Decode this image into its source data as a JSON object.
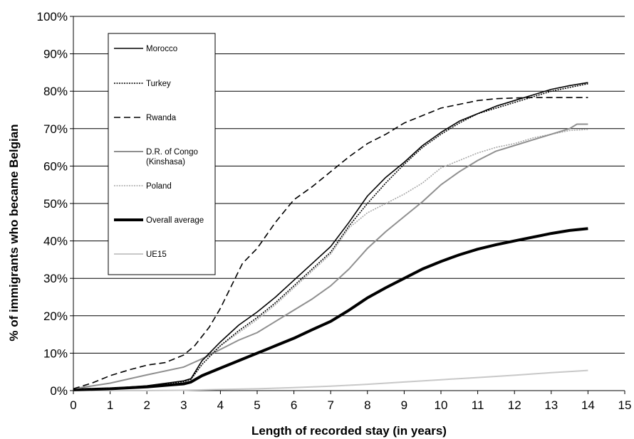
{
  "chart_data": {
    "type": "line",
    "xlabel": "Length of recorded stay (in years)",
    "ylabel": "% of immigrants who became Belgian",
    "xlim": [
      0,
      15
    ],
    "ylim": [
      0,
      100
    ],
    "x_ticks": [
      "0",
      "1",
      "2",
      "3",
      "4",
      "5",
      "6",
      "7",
      "8",
      "9",
      "10",
      "11",
      "12",
      "13",
      "14",
      "15"
    ],
    "y_ticks": [
      "0%",
      "10%",
      "20%",
      "30%",
      "40%",
      "50%",
      "60%",
      "70%",
      "80%",
      "90%",
      "100%"
    ],
    "grid": "horizontal",
    "legend_position": "top-left",
    "series": [
      {
        "name": "Morocco",
        "color": "#000000",
        "style": "solid-thin",
        "points": [
          [
            0,
            0.3
          ],
          [
            1,
            0.6
          ],
          [
            2,
            1.3
          ],
          [
            3,
            2.6
          ],
          [
            3.2,
            3.2
          ],
          [
            3.5,
            8
          ],
          [
            4,
            13
          ],
          [
            4.5,
            17.5
          ],
          [
            5,
            21
          ],
          [
            5.5,
            25
          ],
          [
            6,
            29.5
          ],
          [
            6.5,
            34
          ],
          [
            7,
            38.5
          ],
          [
            7.5,
            45
          ],
          [
            8,
            52
          ],
          [
            8.5,
            57
          ],
          [
            9,
            61
          ],
          [
            9.5,
            65.5
          ],
          [
            10,
            69
          ],
          [
            10.5,
            72
          ],
          [
            11,
            74
          ],
          [
            11.5,
            76
          ],
          [
            12,
            77.5
          ],
          [
            12.5,
            79
          ],
          [
            13,
            80.5
          ],
          [
            13.5,
            81.5
          ],
          [
            14,
            82.3
          ]
        ]
      },
      {
        "name": "Turkey",
        "color": "#000000",
        "style": "dotted",
        "points": [
          [
            0,
            0.3
          ],
          [
            1,
            0.6
          ],
          [
            2,
            1.2
          ],
          [
            3,
            2.4
          ],
          [
            3.2,
            3
          ],
          [
            3.5,
            7
          ],
          [
            4,
            12
          ],
          [
            4.5,
            16
          ],
          [
            5,
            19.5
          ],
          [
            5.5,
            23.5
          ],
          [
            6,
            28
          ],
          [
            6.5,
            32.5
          ],
          [
            7,
            37
          ],
          [
            7.5,
            44
          ],
          [
            8,
            50
          ],
          [
            8.5,
            55.5
          ],
          [
            9,
            60.5
          ],
          [
            9.5,
            65
          ],
          [
            10,
            68.5
          ],
          [
            10.5,
            71.5
          ],
          [
            11,
            74
          ],
          [
            11.5,
            75.5
          ],
          [
            12,
            77
          ],
          [
            12.5,
            78.5
          ],
          [
            13,
            80
          ],
          [
            13.5,
            81
          ],
          [
            14,
            82
          ]
        ]
      },
      {
        "name": "Rwanda",
        "color": "#000000",
        "style": "dashed",
        "points": [
          [
            0,
            0.5
          ],
          [
            0.5,
            2
          ],
          [
            1,
            4
          ],
          [
            1.5,
            5.5
          ],
          [
            2,
            6.8
          ],
          [
            2.5,
            7.5
          ],
          [
            3,
            9.5
          ],
          [
            3.3,
            12
          ],
          [
            3.7,
            17
          ],
          [
            4,
            22
          ],
          [
            4.3,
            28
          ],
          [
            4.6,
            34
          ],
          [
            5,
            38
          ],
          [
            5.5,
            45
          ],
          [
            6,
            51
          ],
          [
            6.5,
            54.5
          ],
          [
            7,
            58.5
          ],
          [
            7.5,
            62.5
          ],
          [
            8,
            66
          ],
          [
            8.5,
            68.5
          ],
          [
            9,
            71.5
          ],
          [
            9.5,
            73.5
          ],
          [
            10,
            75.5
          ],
          [
            10.5,
            76.5
          ],
          [
            11,
            77.5
          ],
          [
            11.5,
            78
          ],
          [
            12,
            78.2
          ],
          [
            12.5,
            78.3
          ],
          [
            13,
            78.3
          ],
          [
            14,
            78.3
          ]
        ]
      },
      {
        "name": "D.R. of Congo (Kinshasa)",
        "color": "#8f8f8f",
        "style": "solid",
        "points": [
          [
            0,
            0.5
          ],
          [
            1,
            2
          ],
          [
            2,
            4.2
          ],
          [
            3,
            6.3
          ],
          [
            3.5,
            8.5
          ],
          [
            4,
            11
          ],
          [
            4.5,
            13.5
          ],
          [
            5,
            15.5
          ],
          [
            5.5,
            18.5
          ],
          [
            6,
            21.5
          ],
          [
            6.5,
            24.5
          ],
          [
            7,
            28
          ],
          [
            7.5,
            32.5
          ],
          [
            8,
            38
          ],
          [
            8.5,
            42.5
          ],
          [
            9,
            46.5
          ],
          [
            9.5,
            50.5
          ],
          [
            10,
            55
          ],
          [
            10.5,
            58.5
          ],
          [
            11,
            61.5
          ],
          [
            11.5,
            64
          ],
          [
            12,
            65.5
          ],
          [
            12.5,
            67
          ],
          [
            13,
            68.5
          ],
          [
            13.5,
            70
          ],
          [
            13.7,
            71.2
          ],
          [
            14,
            71.2
          ]
        ]
      },
      {
        "name": "Poland",
        "color": "#a8a8a8",
        "style": "dotted",
        "points": [
          [
            0,
            0.3
          ],
          [
            1,
            0.6
          ],
          [
            2,
            1.3
          ],
          [
            3,
            2.5
          ],
          [
            3.2,
            3
          ],
          [
            3.5,
            8
          ],
          [
            4,
            12
          ],
          [
            4.5,
            15.5
          ],
          [
            5,
            19
          ],
          [
            5.5,
            23
          ],
          [
            6,
            27.5
          ],
          [
            6.5,
            32
          ],
          [
            7,
            36.5
          ],
          [
            7.5,
            43.5
          ],
          [
            8,
            47.5
          ],
          [
            8.5,
            50
          ],
          [
            9,
            52.5
          ],
          [
            9.5,
            55.5
          ],
          [
            10,
            59.5
          ],
          [
            10.5,
            61.5
          ],
          [
            11,
            63.5
          ],
          [
            11.5,
            65
          ],
          [
            12,
            66
          ],
          [
            12.5,
            67.5
          ],
          [
            13,
            68.5
          ],
          [
            13.5,
            69.5
          ],
          [
            14,
            69.8
          ]
        ]
      },
      {
        "name": "Overall average",
        "color": "#000000",
        "style": "bold",
        "points": [
          [
            0,
            0.2
          ],
          [
            1,
            0.5
          ],
          [
            2,
            1
          ],
          [
            3,
            1.8
          ],
          [
            3.2,
            2.3
          ],
          [
            3.5,
            4
          ],
          [
            4,
            6
          ],
          [
            4.5,
            8
          ],
          [
            5,
            10
          ],
          [
            5.5,
            12
          ],
          [
            6,
            14
          ],
          [
            6.5,
            16.3
          ],
          [
            7,
            18.5
          ],
          [
            7.5,
            21.5
          ],
          [
            8,
            24.8
          ],
          [
            8.5,
            27.5
          ],
          [
            9,
            30
          ],
          [
            9.5,
            32.5
          ],
          [
            10,
            34.5
          ],
          [
            10.5,
            36.3
          ],
          [
            11,
            37.8
          ],
          [
            11.5,
            39
          ],
          [
            12,
            40
          ],
          [
            12.5,
            41
          ],
          [
            13,
            42
          ],
          [
            13.5,
            42.8
          ],
          [
            14,
            43.3
          ]
        ]
      },
      {
        "name": "UE15",
        "color": "#c8c8c8",
        "style": "solid",
        "points": [
          [
            0,
            0
          ],
          [
            2,
            0
          ],
          [
            3,
            0.1
          ],
          [
            4,
            0.3
          ],
          [
            5,
            0.5
          ],
          [
            6,
            0.8
          ],
          [
            7,
            1.2
          ],
          [
            8,
            1.7
          ],
          [
            9,
            2.3
          ],
          [
            10,
            2.9
          ],
          [
            11,
            3.5
          ],
          [
            12,
            4.1
          ],
          [
            13,
            4.8
          ],
          [
            14,
            5.4
          ]
        ]
      }
    ]
  }
}
